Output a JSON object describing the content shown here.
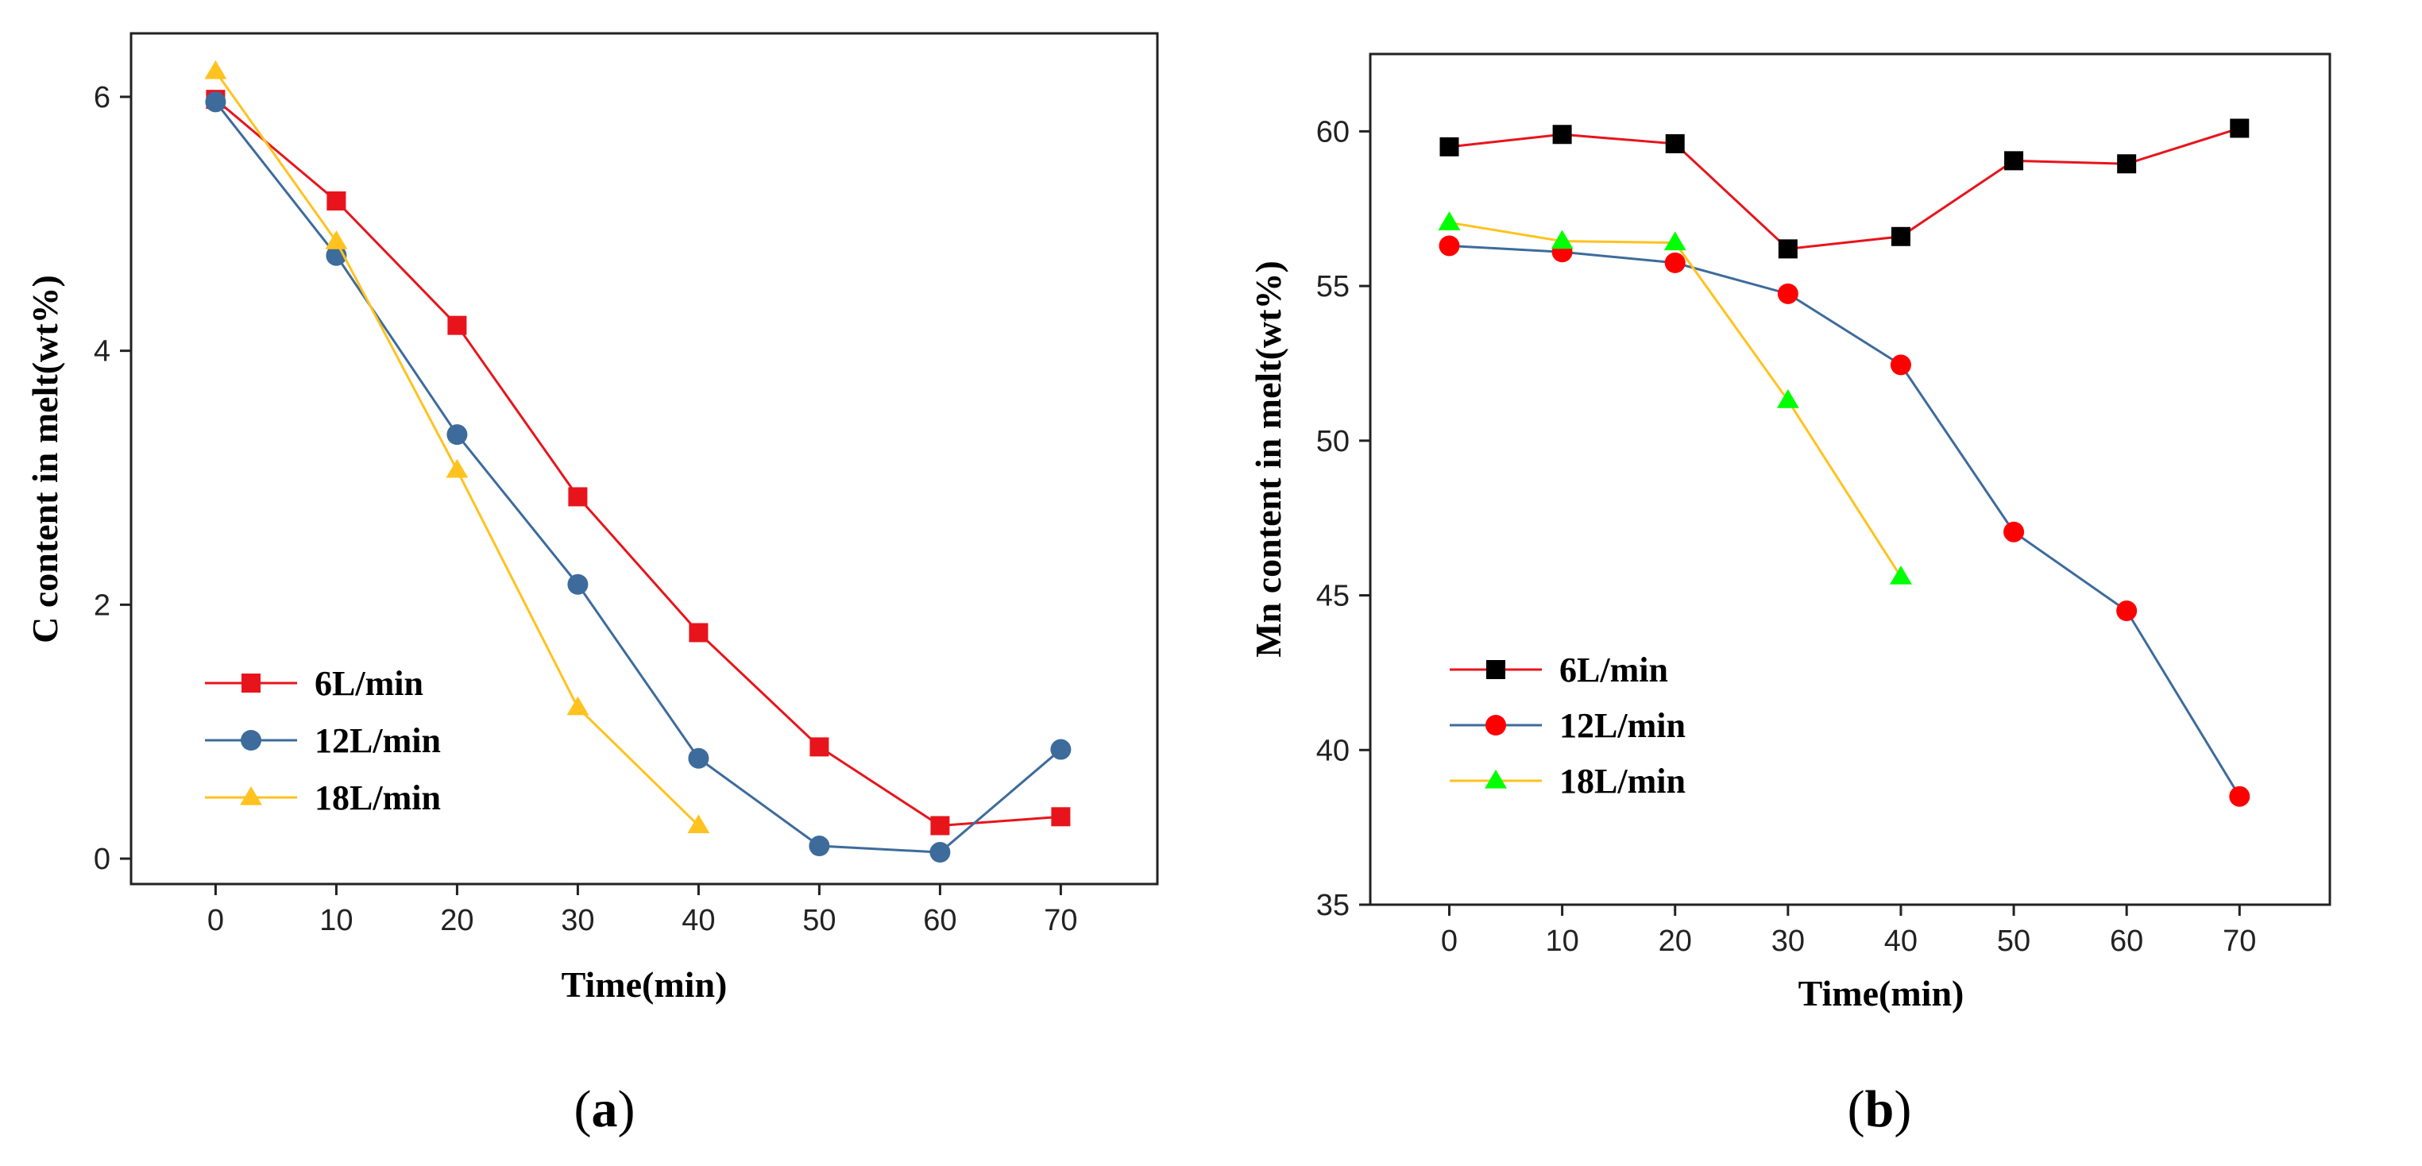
{
  "chart_data": [
    {
      "type": "line",
      "panel_label": {
        "open": "(",
        "letter": "a",
        "close": ")"
      },
      "xlabel": "Time(min)",
      "ylabel": "C content in melt(wt%)",
      "xlim": [
        -7,
        78
      ],
      "ylim": [
        -0.2,
        6.5
      ],
      "xticks": [
        0,
        10,
        20,
        30,
        40,
        50,
        60,
        70
      ],
      "yticks": [
        0,
        2,
        4,
        6
      ],
      "legend_position": "bottom-left",
      "series": [
        {
          "name": "6L/min",
          "color": "#e8141c",
          "marker": "square",
          "x": [
            0,
            10,
            20,
            30,
            40,
            50,
            60,
            70
          ],
          "y": [
            5.98,
            5.18,
            4.2,
            2.85,
            1.78,
            0.88,
            0.26,
            0.33
          ]
        },
        {
          "name": "12L/min",
          "color": "#3d6b9c",
          "marker": "circle",
          "x": [
            0,
            10,
            20,
            30,
            40,
            50,
            60,
            70
          ],
          "y": [
            5.96,
            4.75,
            3.34,
            2.16,
            0.79,
            0.1,
            0.05,
            0.86
          ]
        },
        {
          "name": "18L/min",
          "color": "#ffc21f",
          "marker": "triangle",
          "x": [
            0,
            10,
            20,
            30,
            40
          ],
          "y": [
            6.2,
            4.86,
            3.06,
            1.19,
            0.26
          ]
        }
      ]
    },
    {
      "type": "line",
      "panel_label": {
        "open": "(",
        "letter": "b",
        "close": ")"
      },
      "xlabel": "Time(min)",
      "ylabel": "Mn content in melt(wt%)",
      "xlim": [
        -7,
        78
      ],
      "ylim": [
        35,
        62.5
      ],
      "xticks": [
        0,
        10,
        20,
        30,
        40,
        50,
        60,
        70
      ],
      "yticks": [
        35,
        40,
        45,
        50,
        55,
        60
      ],
      "legend_position": "bottom-left",
      "series": [
        {
          "name": "6L/min",
          "color": "#e8141c",
          "marker_color": "#000000",
          "marker": "square",
          "x": [
            0,
            10,
            20,
            30,
            40,
            50,
            60,
            70
          ],
          "y": [
            59.5,
            59.9,
            59.6,
            56.2,
            56.6,
            59.05,
            58.95,
            60.1
          ]
        },
        {
          "name": "12L/min",
          "color": "#3d6b9c",
          "marker_color": "#ff0000",
          "marker": "circle",
          "x": [
            0,
            10,
            20,
            30,
            40,
            50,
            60,
            70
          ],
          "y": [
            56.3,
            56.1,
            55.75,
            54.75,
            52.45,
            47.05,
            44.5,
            38.5
          ]
        },
        {
          "name": "18L/min",
          "color": "#ffc21f",
          "marker_color": "#00ff00",
          "marker": "triangle",
          "x": [
            0,
            10,
            20,
            30,
            40
          ],
          "y": [
            57.05,
            56.45,
            56.4,
            51.3,
            45.6
          ]
        }
      ]
    }
  ]
}
